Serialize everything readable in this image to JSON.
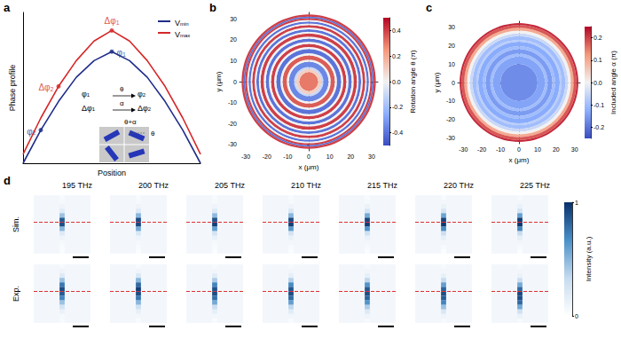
{
  "chart_data": [
    {
      "panel": "a",
      "type": "line",
      "x_label": "Position",
      "y_label": "Phase profile",
      "tick_labels": false,
      "legend": "top-right",
      "xlim": [
        0,
        10
      ],
      "ylim": [
        0,
        10
      ],
      "x": [
        0,
        1,
        2,
        3,
        4,
        5,
        6,
        7,
        8,
        9,
        10
      ],
      "series": [
        {
          "name": "Vmin",
          "color": "#1f2d8a",
          "values": [
            0.0,
            2.2,
            4.1,
            5.7,
            6.8,
            7.4,
            6.8,
            5.7,
            4.1,
            2.2,
            0.0
          ]
        },
        {
          "name": "Vmax",
          "color": "#d62728",
          "values": [
            0.6,
            3.0,
            5.1,
            6.8,
            8.1,
            8.8,
            8.1,
            6.8,
            5.1,
            3.0,
            0.6
          ]
        }
      ],
      "annotations": [
        {
          "text": "Δφ1",
          "series": "Vmax",
          "x": 5
        },
        {
          "text": "φ1",
          "series": "Vmin",
          "x": 5
        },
        {
          "text": "Δφ2",
          "series": "Vmax",
          "x": 2
        },
        {
          "text": "φ2",
          "series": "Vmin",
          "x": 1
        }
      ],
      "inset": {
        "rows": [
          [
            "φ1",
            "θ",
            "φ2"
          ],
          [
            "Δφ1",
            "α",
            "Δφ2"
          ]
        ],
        "cell_labels": [
          "θ+α",
          "θ"
        ]
      }
    },
    {
      "panel": "b",
      "type": "heatmap",
      "x_label": "x (μm)",
      "y_label": "y (μm)",
      "xlim": [
        -33,
        33
      ],
      "ylim": [
        -33,
        33
      ],
      "xticks": [
        -30,
        -20,
        -10,
        0,
        10,
        20,
        30
      ],
      "yticks": [
        -30,
        -20,
        -10,
        0,
        10,
        20,
        30
      ],
      "center": [
        0,
        0
      ],
      "radius": [
        4.5,
        6,
        7,
        9.5,
        10.5,
        12.5,
        13.5,
        15.5,
        16.5,
        18,
        19,
        20.5,
        21.5,
        23,
        23.8,
        25,
        25.8,
        27,
        27.7,
        28.7,
        29.4,
        30.3,
        31,
        32
      ],
      "values": [
        0.3,
        0.1,
        -0.1,
        -0.35,
        0.0,
        0.35,
        0.0,
        -0.4,
        0.0,
        0.4,
        0.0,
        -0.4,
        0.0,
        0.4,
        0.0,
        -0.4,
        0.0,
        0.4,
        0.0,
        -0.4,
        0.0,
        0.4,
        -0.4,
        0.4
      ],
      "colorbar": {
        "title": "Rotation angle θ (π)",
        "range": [
          -0.5,
          0.5
        ],
        "ticks": [
          -0.4,
          -0.2,
          {
            "value": 0,
            "label": "0.0"
          },
          0.2,
          0.4
        ],
        "colors": [
          "#3a4cc0",
          "#8db0fe",
          "#f2f2f2",
          "#f4987a",
          "#b40426"
        ]
      }
    },
    {
      "panel": "c",
      "type": "heatmap",
      "x_label": "x (μm)",
      "y_label": "y (μm)",
      "xlim": [
        -33,
        33
      ],
      "ylim": [
        -33,
        33
      ],
      "xticks": [
        -30,
        -20,
        -10,
        0,
        10,
        20,
        30
      ],
      "yticks": [
        -30,
        -20,
        -10,
        0,
        10,
        20,
        30
      ],
      "center": [
        0,
        0
      ],
      "radius": [
        10,
        14,
        15.5,
        18,
        19.5,
        22,
        23,
        25,
        26.5,
        28,
        29.5,
        31,
        32
      ],
      "values": [
        -0.17,
        -0.14,
        -0.1,
        -0.15,
        -0.1,
        -0.13,
        -0.07,
        -0.1,
        -0.05,
        0.0,
        0.1,
        0.18,
        0.22
      ],
      "colorbar": {
        "title": "Included angle α (π)",
        "range": [
          -0.25,
          0.25
        ],
        "ticks": [
          -0.2,
          -0.1,
          {
            "value": 0,
            "label": "0.0"
          },
          0.1,
          0.2
        ],
        "colors": [
          "#3a4cc0",
          "#8db0fe",
          "#f2f2f2",
          "#f4987a",
          "#b40426"
        ]
      }
    },
    {
      "panel": "d",
      "type": "heatmap",
      "columns": [
        "195 THz",
        "200 THz",
        "205 THz",
        "210 THz",
        "215 THz",
        "220 THz",
        "225 THz"
      ],
      "rows": [
        "Sim.",
        "Exp."
      ],
      "focal_plane": 6,
      "values": [
        [
          [
            0.04,
            0.06,
            0.1,
            0.18,
            0.45,
            0.85,
            0.9,
            0.5,
            0.2,
            0.1,
            0.06,
            0.04,
            0.03
          ],
          [
            0.04,
            0.06,
            0.1,
            0.2,
            0.5,
            0.9,
            0.92,
            0.55,
            0.22,
            0.1,
            0.06,
            0.04,
            0.03
          ],
          [
            0.04,
            0.06,
            0.1,
            0.2,
            0.48,
            0.88,
            0.95,
            0.6,
            0.25,
            0.12,
            0.06,
            0.04,
            0.03
          ],
          [
            0.04,
            0.06,
            0.1,
            0.22,
            0.5,
            0.9,
            0.95,
            0.62,
            0.26,
            0.12,
            0.07,
            0.04,
            0.03
          ],
          [
            0.04,
            0.06,
            0.12,
            0.24,
            0.55,
            0.92,
            0.96,
            0.65,
            0.28,
            0.13,
            0.07,
            0.05,
            0.03
          ],
          [
            0.04,
            0.07,
            0.12,
            0.25,
            0.58,
            0.93,
            0.97,
            0.68,
            0.3,
            0.14,
            0.08,
            0.05,
            0.03
          ],
          [
            0.05,
            0.07,
            0.13,
            0.26,
            0.6,
            0.95,
            0.98,
            0.7,
            0.32,
            0.15,
            0.08,
            0.05,
            0.03
          ]
        ],
        [
          [
            0.05,
            0.1,
            0.2,
            0.45,
            0.75,
            0.9,
            0.85,
            0.7,
            0.45,
            0.25,
            0.12,
            0.06,
            0.04
          ],
          [
            0.05,
            0.1,
            0.22,
            0.5,
            0.8,
            0.95,
            0.9,
            0.75,
            0.5,
            0.28,
            0.14,
            0.07,
            0.04
          ],
          [
            0.05,
            0.08,
            0.18,
            0.4,
            0.7,
            0.88,
            0.9,
            0.78,
            0.55,
            0.3,
            0.15,
            0.07,
            0.04
          ],
          [
            0.05,
            0.08,
            0.16,
            0.38,
            0.68,
            0.86,
            0.9,
            0.8,
            0.6,
            0.35,
            0.18,
            0.08,
            0.04
          ],
          [
            0.05,
            0.08,
            0.15,
            0.35,
            0.65,
            0.85,
            0.9,
            0.82,
            0.65,
            0.4,
            0.2,
            0.1,
            0.05
          ],
          [
            0.05,
            0.07,
            0.14,
            0.32,
            0.6,
            0.82,
            0.9,
            0.85,
            0.7,
            0.45,
            0.22,
            0.1,
            0.05
          ],
          [
            0.05,
            0.07,
            0.12,
            0.3,
            0.55,
            0.8,
            0.92,
            0.9,
            0.8,
            0.55,
            0.28,
            0.12,
            0.05
          ]
        ]
      ],
      "colorbar": {
        "title": "Intensity (a.u.)",
        "range": [
          0,
          1
        ],
        "ticks": [
          0,
          1
        ],
        "colors": [
          "#ffffff",
          "#c6dbef",
          "#4a90c8",
          "#08306b"
        ]
      }
    }
  ]
}
